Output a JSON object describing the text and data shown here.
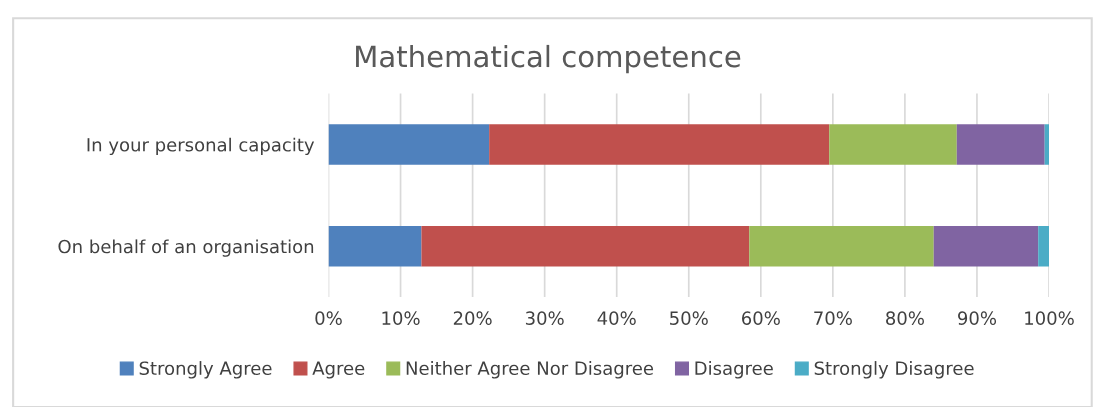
{
  "chart_data": {
    "type": "bar",
    "orientation": "horizontal",
    "stacked": true,
    "title": "Mathematical competence",
    "categories": [
      "In your personal capacity",
      "On behalf of an organisation"
    ],
    "series": [
      {
        "name": "Strongly Agree",
        "color": "#4f81bd",
        "values": [
          22.3,
          12.9
        ]
      },
      {
        "name": "Agree",
        "color": "#c0504d",
        "values": [
          47.2,
          45.5
        ]
      },
      {
        "name": "Neither Agree Nor Disagree",
        "color": "#9bbb59",
        "values": [
          17.7,
          25.6
        ]
      },
      {
        "name": "Disagree",
        "color": "#8064a2",
        "values": [
          12.2,
          14.5
        ]
      },
      {
        "name": "Strongly Disagree",
        "color": "#4bacc6",
        "values": [
          0.6,
          1.5
        ]
      }
    ],
    "xlim": [
      0,
      100
    ],
    "xticks": [
      {
        "value": 0,
        "label": "0%"
      },
      {
        "value": 10,
        "label": "10%"
      },
      {
        "value": 20,
        "label": "20%"
      },
      {
        "value": 30,
        "label": "30%"
      },
      {
        "value": 40,
        "label": "40%"
      },
      {
        "value": 50,
        "label": "50%"
      },
      {
        "value": 60,
        "label": "60%"
      },
      {
        "value": 70,
        "label": "70%"
      },
      {
        "value": 80,
        "label": "80%"
      },
      {
        "value": 90,
        "label": "90%"
      },
      {
        "value": 100,
        "label": "100%"
      }
    ],
    "grid": "x",
    "legend": "bottom"
  }
}
